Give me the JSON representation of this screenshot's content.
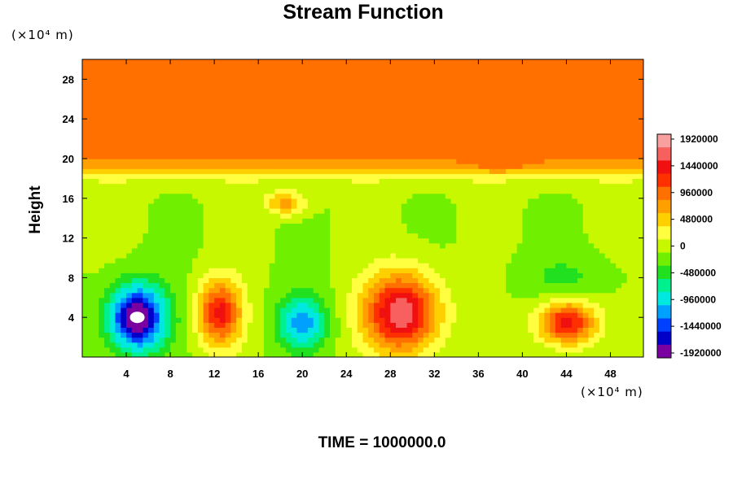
{
  "chart_data": {
    "type": "heatmap",
    "title": "Stream Function",
    "ylabel": "Height",
    "y_unit": "(×10⁴ m)",
    "x_unit": "(×10⁴ m)",
    "footer": "TIME = 1000000.0",
    "xlim": [
      0,
      51
    ],
    "ylim": [
      0,
      30
    ],
    "x_ticks": [
      4,
      8,
      12,
      16,
      20,
      24,
      28,
      32,
      36,
      40,
      44,
      48
    ],
    "y_ticks": [
      4,
      8,
      12,
      16,
      20,
      24,
      28
    ],
    "colorbar": {
      "labels": [
        "1920000",
        "1440000",
        "960000",
        "480000",
        "0",
        "-480000",
        "-960000",
        "-1440000",
        "-1920000"
      ],
      "range": [
        -2100000,
        2100000
      ],
      "colors": [
        "#7a00a0",
        "#0000c8",
        "#0040ff",
        "#00a0ff",
        "#00e8e0",
        "#00f090",
        "#20e020",
        "#70f000",
        "#c8f800",
        "#ffff40",
        "#ffd000",
        "#ffa000",
        "#ff7000",
        "#ff3000",
        "#f01010",
        "#f86060",
        "#f8a0a0"
      ]
    },
    "grid": false,
    "legend": "colorbar-right",
    "background_value": 1050000,
    "features": [
      {
        "x": 5,
        "y": 4,
        "value": -2150000
      },
      {
        "x": 12.5,
        "y": 4.5,
        "value": 1550000
      },
      {
        "x": 20,
        "y": 3.5,
        "value": -1150000
      },
      {
        "x": 29,
        "y": 4.5,
        "value": 1950000
      },
      {
        "x": 44,
        "y": 3.5,
        "value": 1600000
      },
      {
        "x": 18.5,
        "y": 15.5,
        "value": 850000
      },
      {
        "x": 38,
        "y": 19.3,
        "value": 1350000
      },
      {
        "x": 44,
        "y": 8,
        "value": -300000
      }
    ]
  }
}
